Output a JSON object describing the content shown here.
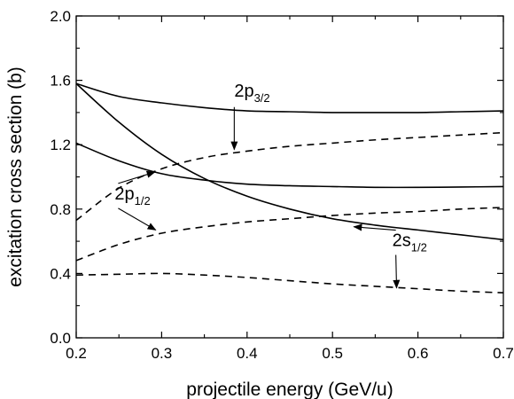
{
  "chart_data": {
    "type": "line",
    "xlabel": "projectile energy (GeV/u)",
    "ylabel": "excitation cross section (b)",
    "xlim": [
      0.2,
      0.7
    ],
    "ylim": [
      0.0,
      2.0
    ],
    "x_ticks": [
      "0.2",
      "0.3",
      "0.4",
      "0.5",
      "0.6",
      "0.7"
    ],
    "y_ticks": [
      "0.0",
      "0.4",
      "0.8",
      "1.2",
      "1.6",
      "2.0"
    ],
    "grid": false,
    "series": [
      {
        "style": "solid",
        "x": [
          0.2,
          0.25,
          0.3,
          0.35,
          0.4,
          0.45,
          0.5,
          0.55,
          0.6,
          0.65,
          0.7
        ],
        "values": [
          1.58,
          1.5,
          1.46,
          1.43,
          1.41,
          1.405,
          1.4,
          1.4,
          1.4,
          1.405,
          1.41
        ]
      },
      {
        "style": "solid",
        "x": [
          0.2,
          0.25,
          0.3,
          0.35,
          0.4,
          0.45,
          0.5,
          0.55,
          0.6,
          0.65,
          0.7
        ],
        "values": [
          1.58,
          1.34,
          1.14,
          0.99,
          0.88,
          0.8,
          0.74,
          0.7,
          0.67,
          0.64,
          0.61
        ]
      },
      {
        "style": "solid",
        "x": [
          0.2,
          0.25,
          0.3,
          0.35,
          0.4,
          0.45,
          0.5,
          0.55,
          0.6,
          0.65,
          0.7
        ],
        "values": [
          1.21,
          1.1,
          1.02,
          0.98,
          0.955,
          0.945,
          0.94,
          0.935,
          0.935,
          0.937,
          0.94
        ]
      },
      {
        "style": "dashed",
        "x": [
          0.2,
          0.25,
          0.3,
          0.35,
          0.4,
          0.45,
          0.5,
          0.55,
          0.6,
          0.65,
          0.7
        ],
        "values": [
          0.73,
          0.93,
          1.05,
          1.12,
          1.16,
          1.19,
          1.21,
          1.23,
          1.245,
          1.26,
          1.275
        ]
      },
      {
        "style": "dashed",
        "x": [
          0.2,
          0.25,
          0.3,
          0.35,
          0.4,
          0.45,
          0.5,
          0.55,
          0.6,
          0.65,
          0.7
        ],
        "values": [
          0.48,
          0.58,
          0.65,
          0.69,
          0.72,
          0.74,
          0.76,
          0.775,
          0.785,
          0.8,
          0.81
        ]
      },
      {
        "style": "dashed",
        "x": [
          0.2,
          0.25,
          0.3,
          0.35,
          0.4,
          0.45,
          0.5,
          0.55,
          0.6,
          0.65,
          0.7
        ],
        "values": [
          0.39,
          0.395,
          0.4,
          0.39,
          0.375,
          0.355,
          0.335,
          0.32,
          0.305,
          0.29,
          0.28
        ]
      }
    ],
    "annotations": [
      {
        "main": "2p",
        "sub": "3/2",
        "x": 0.385,
        "y": 1.5,
        "arrow_to": {
          "x": 0.385,
          "y": 1.17
        }
      },
      {
        "main": "2p",
        "sub": "1/2",
        "x": 0.245,
        "y": 0.86,
        "arrow_to": {
          "x": 0.292,
          "y": 1.03
        },
        "arrow2_to": {
          "x": 0.293,
          "y": 0.67
        }
      },
      {
        "main": "2s",
        "sub": "1/2",
        "x": 0.57,
        "y": 0.57,
        "arrow_to": {
          "x": 0.525,
          "y": 0.69
        },
        "arrow2_to": {
          "x": 0.575,
          "y": 0.31
        }
      }
    ]
  }
}
